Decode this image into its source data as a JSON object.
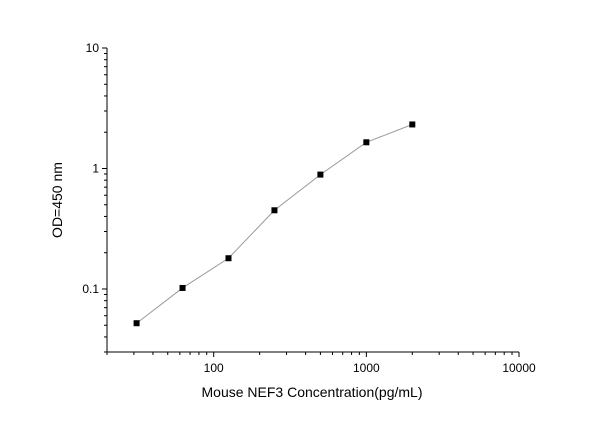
{
  "chart_data": {
    "type": "line",
    "title": "",
    "xlabel": "Mouse NEF3 Concentration(pg/mL)",
    "ylabel": "OD=450 nm",
    "x_scale": "log",
    "y_scale": "log",
    "xlim": [
      20,
      10000
    ],
    "ylim": [
      0.03,
      10
    ],
    "x_ticks": [
      100,
      1000,
      10000
    ],
    "x_tick_labels": [
      "100",
      "1000",
      "10000"
    ],
    "y_ticks": [
      0.1,
      1,
      10
    ],
    "y_tick_labels": [
      "0.1",
      "1",
      "10"
    ],
    "grid": false,
    "series": [
      {
        "x": [
          31.25,
          62.5,
          125,
          250,
          500,
          1000,
          2000
        ],
        "y": [
          0.052,
          0.102,
          0.18,
          0.45,
          0.89,
          1.65,
          2.32
        ],
        "marker": "square",
        "color": "#000000",
        "line_color": "#999999"
      }
    ]
  }
}
